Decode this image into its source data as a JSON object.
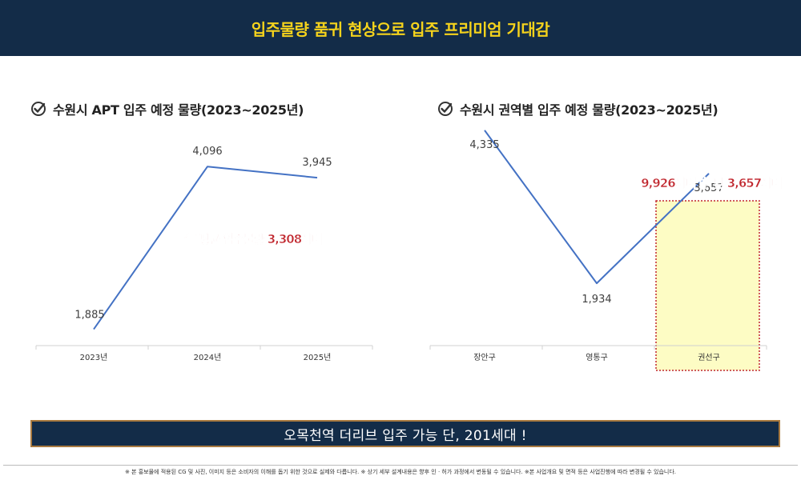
{
  "header": {
    "title": "입주물량 품귀 현상으로 입주 프리미엄 기대감"
  },
  "colors": {
    "header_bg": "#132c48",
    "title_yellow": "#f5d31c",
    "line": "#4472c4",
    "highlight_fill": "#fdfcc4",
    "highlight_border": "#c0262d",
    "annotation_red": "#c0262d"
  },
  "chart_data": [
    {
      "type": "line",
      "title": "수원시 APT 입주 예정 물량(2023~2025년)",
      "categories": [
        "2023년",
        "2024년",
        "2025년"
      ],
      "values": [
        1885,
        4096,
        3945
      ],
      "value_labels": [
        "1,885",
        "4,096",
        "3,945"
      ],
      "annotation": "年 평균 입주물량 3,308세대",
      "grid": false
    },
    {
      "type": "line",
      "title": "수원시 권역별 입주 예정 물량(2023~2025년)",
      "categories": [
        "장안구",
        "영통구",
        "권선구"
      ],
      "values": [
        4335,
        1934,
        3657
      ],
      "value_labels": [
        "4,335",
        "1,934",
        "3,657"
      ],
      "annotation": "9,926세대 中 단 3,657세대",
      "highlight_category": "권선구",
      "grid": false
    }
  ],
  "banner": {
    "text": "오목천역 더리브 입주 가능 단, 201세대 !"
  },
  "footer": {
    "disclaimer": "※ 본 홍보물에 적용된 CG 및 사진, 이미지 등은 소비자의 이해를 돕기 위한 것으로 실제와 다릅니다. ※ 상기 세부 설계내용은 향후 인 · 허가 과정에서 변동될 수 있습니다. ※본 사업개요 및 면적 등은 사업진행에 따라 변경될 수 있습니다."
  }
}
